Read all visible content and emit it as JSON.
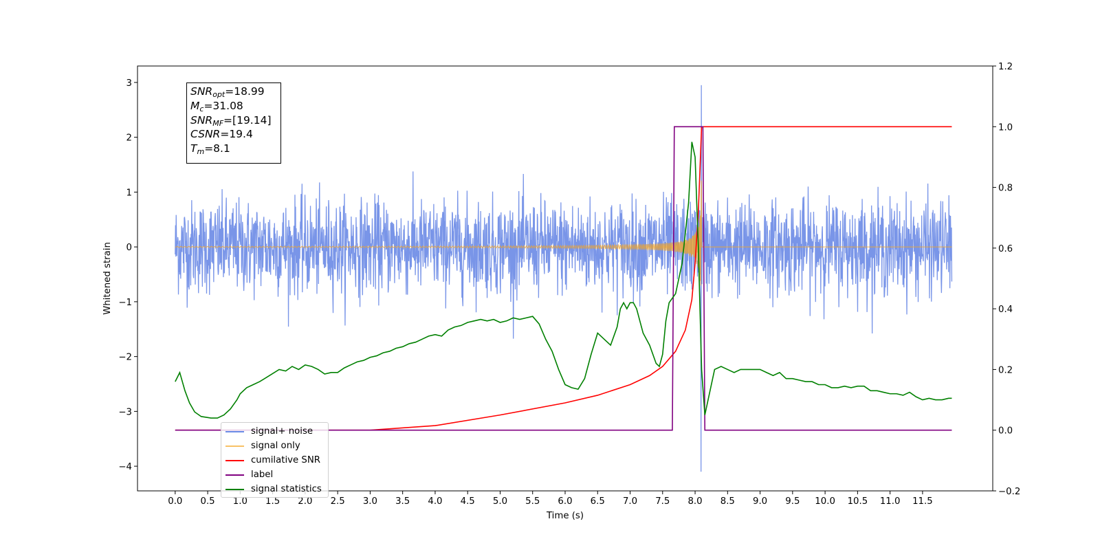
{
  "chart_data": {
    "type": "line",
    "xlabel": "Time (s)",
    "ylabel": "Whitened strain",
    "xlim": [
      -0.58,
      12.58
    ],
    "ylim": [
      -4.45,
      3.3
    ],
    "y2lim": [
      -0.2,
      1.2
    ],
    "x_ticks": [
      "0.0",
      "0.5",
      "1.0",
      "1.5",
      "2.0",
      "2.5",
      "3.0",
      "3.5",
      "4.0",
      "4.5",
      "5.0",
      "5.5",
      "6.0",
      "6.5",
      "7.0",
      "7.5",
      "8.0",
      "8.5",
      "9.0",
      "9.5",
      "10.0",
      "10.5",
      "11.0",
      "11.5"
    ],
    "y_ticks": [
      "3",
      "2",
      "1",
      "0",
      "−1",
      "−2",
      "−3",
      "−4"
    ],
    "y2_ticks": [
      "1.2",
      "1.0",
      "0.8",
      "0.6",
      "0.4",
      "0.2",
      "0.0",
      "−0.2"
    ],
    "legend_position": "lower left",
    "annotation": {
      "snr_opt": "=18.99",
      "mc": "=31.08",
      "snr_mf": "=[19.14]",
      "csnr": "=19.4",
      "tm": "=8.1"
    },
    "series": [
      {
        "name": "signal+ noise",
        "color": "#6a8ae6",
        "axis": "left",
        "description": "whitened noise, |y| up to ~1.4, peak at 8.1"
      },
      {
        "name": "signal only",
        "color": "#f5a623",
        "axis": "left",
        "description": "chirp growing toward merger at 8.1"
      },
      {
        "name": "cumilative SNR",
        "color": "#ff0000",
        "axis": "right",
        "x": [
          0.0,
          3.0,
          4.0,
          5.0,
          6.0,
          6.5,
          7.0,
          7.3,
          7.5,
          7.7,
          7.85,
          7.95,
          8.0,
          8.05,
          8.1,
          11.95
        ],
        "y": [
          0.0,
          0.0,
          0.015,
          0.05,
          0.09,
          0.115,
          0.15,
          0.18,
          0.21,
          0.26,
          0.33,
          0.43,
          0.55,
          0.72,
          1.0,
          1.0
        ]
      },
      {
        "name": "label",
        "color": "#800080",
        "axis": "right",
        "x": [
          0.0,
          7.65,
          7.68,
          8.12,
          8.15,
          11.95
        ],
        "y": [
          0,
          0,
          1,
          1,
          0,
          0
        ]
      },
      {
        "name": "signal statistics",
        "color": "#008000",
        "axis": "right",
        "x": [
          0.0,
          0.07,
          0.15,
          0.22,
          0.3,
          0.4,
          0.55,
          0.65,
          0.75,
          0.85,
          0.95,
          1.0,
          1.1,
          1.2,
          1.3,
          1.45,
          1.6,
          1.7,
          1.8,
          1.9,
          2.0,
          2.1,
          2.2,
          2.3,
          2.4,
          2.5,
          2.6,
          2.7,
          2.8,
          2.9,
          3.0,
          3.1,
          3.2,
          3.3,
          3.4,
          3.5,
          3.6,
          3.7,
          3.8,
          3.9,
          4.0,
          4.1,
          4.2,
          4.3,
          4.4,
          4.5,
          4.6,
          4.7,
          4.8,
          4.9,
          5.0,
          5.1,
          5.2,
          5.3,
          5.4,
          5.5,
          5.6,
          5.7,
          5.8,
          5.9,
          6.0,
          6.1,
          6.2,
          6.3,
          6.4,
          6.5,
          6.6,
          6.7,
          6.8,
          6.85,
          6.9,
          6.95,
          7.0,
          7.05,
          7.1,
          7.2,
          7.3,
          7.4,
          7.45,
          7.5,
          7.55,
          7.6,
          7.7,
          7.8,
          7.9,
          7.95,
          8.0,
          8.05,
          8.1,
          8.15,
          8.2,
          8.3,
          8.4,
          8.5,
          8.6,
          8.7,
          8.8,
          8.9,
          9.0,
          9.1,
          9.2,
          9.3,
          9.4,
          9.5,
          9.6,
          9.7,
          9.8,
          9.9,
          10.0,
          10.1,
          10.2,
          10.3,
          10.4,
          10.5,
          10.6,
          10.7,
          10.8,
          10.9,
          11.0,
          11.1,
          11.2,
          11.3,
          11.4,
          11.5,
          11.6,
          11.7,
          11.8,
          11.9,
          11.95
        ],
        "y": [
          0.16,
          0.19,
          0.13,
          0.09,
          0.06,
          0.045,
          0.04,
          0.04,
          0.05,
          0.07,
          0.1,
          0.12,
          0.14,
          0.15,
          0.16,
          0.18,
          0.2,
          0.195,
          0.21,
          0.2,
          0.215,
          0.21,
          0.2,
          0.185,
          0.19,
          0.19,
          0.205,
          0.215,
          0.225,
          0.23,
          0.24,
          0.245,
          0.255,
          0.26,
          0.27,
          0.275,
          0.285,
          0.29,
          0.3,
          0.31,
          0.315,
          0.31,
          0.33,
          0.34,
          0.345,
          0.355,
          0.36,
          0.365,
          0.36,
          0.365,
          0.355,
          0.36,
          0.37,
          0.365,
          0.37,
          0.375,
          0.35,
          0.3,
          0.26,
          0.2,
          0.15,
          0.14,
          0.135,
          0.17,
          0.25,
          0.32,
          0.3,
          0.28,
          0.34,
          0.4,
          0.42,
          0.4,
          0.42,
          0.42,
          0.4,
          0.32,
          0.28,
          0.22,
          0.21,
          0.25,
          0.36,
          0.42,
          0.45,
          0.55,
          0.75,
          0.95,
          0.9,
          0.6,
          0.2,
          0.05,
          0.1,
          0.2,
          0.21,
          0.2,
          0.19,
          0.2,
          0.2,
          0.2,
          0.2,
          0.19,
          0.18,
          0.19,
          0.17,
          0.17,
          0.165,
          0.16,
          0.16,
          0.15,
          0.15,
          0.14,
          0.14,
          0.145,
          0.14,
          0.145,
          0.145,
          0.13,
          0.13,
          0.125,
          0.12,
          0.12,
          0.115,
          0.125,
          0.11,
          0.1,
          0.105,
          0.1,
          0.1,
          0.105,
          0.105
        ]
      }
    ]
  }
}
